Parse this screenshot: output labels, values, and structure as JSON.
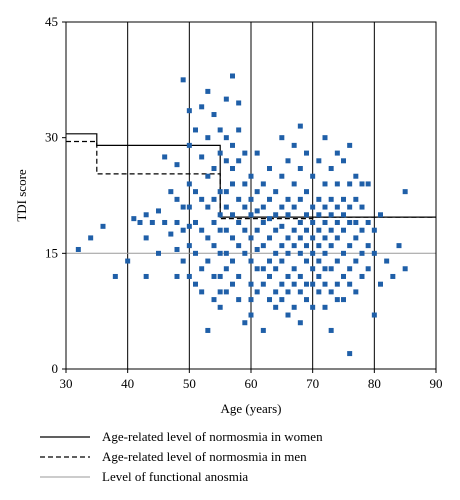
{
  "chart_data": {
    "type": "scatter",
    "title": "",
    "xlabel": "Age (years)",
    "ylabel": "TDI score",
    "xlim": [
      30,
      90
    ],
    "ylim": [
      0,
      45
    ],
    "xticks": [
      "30",
      "40",
      "50",
      "60",
      "70",
      "80",
      "90"
    ],
    "yticks": [
      "0",
      "15",
      "30",
      "45"
    ],
    "xtick_values": [
      30,
      40,
      50,
      60,
      70,
      80,
      90
    ],
    "ytick_values": [
      0,
      15,
      30,
      45
    ],
    "grid": "vertical",
    "marker_color": "#1f5fa8",
    "lines": [
      {
        "name": "Age-related level of normosmia in women",
        "style": "solid",
        "color": "#000000",
        "points": [
          [
            30,
            30.5
          ],
          [
            35,
            30.5
          ],
          [
            35,
            29.0
          ],
          [
            55,
            29.0
          ],
          [
            55,
            19.7
          ],
          [
            90,
            19.7
          ]
        ]
      },
      {
        "name": "Age-related level of normosmia in men",
        "style": "dashed",
        "color": "#000000",
        "points": [
          [
            30,
            29.5
          ],
          [
            35,
            29.5
          ],
          [
            35,
            25.3
          ],
          [
            55,
            25.3
          ],
          [
            55,
            19.5
          ],
          [
            70,
            19.5
          ],
          [
            70,
            19.7
          ],
          [
            90,
            19.7
          ]
        ]
      },
      {
        "name": "Level of functional anosmia",
        "style": "solid",
        "color": "#9a9a9a",
        "points": [
          [
            30,
            15.0
          ],
          [
            90,
            15.0
          ]
        ]
      }
    ],
    "legend_position": "bottom",
    "points": [
      [
        32,
        15.5
      ],
      [
        34,
        17
      ],
      [
        36,
        18.5
      ],
      [
        38,
        12
      ],
      [
        40,
        14
      ],
      [
        41,
        19.5
      ],
      [
        42,
        19
      ],
      [
        43,
        17
      ],
      [
        43,
        20
      ],
      [
        43,
        12
      ],
      [
        44,
        19
      ],
      [
        45,
        20.5
      ],
      [
        45,
        15
      ],
      [
        46,
        27.5
      ],
      [
        46,
        19
      ],
      [
        47,
        23
      ],
      [
        47,
        17.5
      ],
      [
        48,
        26.5
      ],
      [
        48,
        22
      ],
      [
        48,
        19
      ],
      [
        48,
        15.5
      ],
      [
        48,
        12
      ],
      [
        49,
        37.5
      ],
      [
        49,
        21
      ],
      [
        49,
        18
      ],
      [
        49,
        14
      ],
      [
        50,
        33.5
      ],
      [
        50,
        29
      ],
      [
        50,
        24
      ],
      [
        50,
        21
      ],
      [
        50,
        18.5
      ],
      [
        50,
        16
      ],
      [
        50,
        12
      ],
      [
        51,
        31
      ],
      [
        51,
        23
      ],
      [
        51,
        19
      ],
      [
        51,
        15
      ],
      [
        51,
        11
      ],
      [
        52,
        34
      ],
      [
        52,
        27.5
      ],
      [
        52,
        22
      ],
      [
        52,
        18
      ],
      [
        52,
        13
      ],
      [
        52,
        10
      ],
      [
        53,
        36
      ],
      [
        53,
        30
      ],
      [
        53,
        25
      ],
      [
        53,
        21
      ],
      [
        53,
        17
      ],
      [
        53,
        14
      ],
      [
        53,
        5
      ],
      [
        54,
        33
      ],
      [
        54,
        26
      ],
      [
        54,
        22
      ],
      [
        54,
        19
      ],
      [
        54,
        16
      ],
      [
        54,
        12
      ],
      [
        54,
        9
      ],
      [
        55,
        31
      ],
      [
        55,
        28
      ],
      [
        55,
        23
      ],
      [
        55,
        20
      ],
      [
        55,
        18
      ],
      [
        55,
        15
      ],
      [
        55,
        12
      ],
      [
        55,
        10
      ],
      [
        55,
        8
      ],
      [
        56,
        35
      ],
      [
        56,
        30
      ],
      [
        56,
        27
      ],
      [
        56,
        23
      ],
      [
        56,
        21
      ],
      [
        56,
        18
      ],
      [
        56,
        15
      ],
      [
        56,
        13
      ],
      [
        56,
        10
      ],
      [
        57,
        38
      ],
      [
        57,
        29
      ],
      [
        57,
        26
      ],
      [
        57,
        24
      ],
      [
        57,
        20
      ],
      [
        57,
        17
      ],
      [
        57,
        14
      ],
      [
        57,
        11
      ],
      [
        58,
        34.5
      ],
      [
        58,
        31
      ],
      [
        58,
        27
      ],
      [
        58,
        22
      ],
      [
        58,
        19
      ],
      [
        58,
        16
      ],
      [
        58,
        12
      ],
      [
        58,
        9
      ],
      [
        59,
        28
      ],
      [
        59,
        24
      ],
      [
        59,
        21
      ],
      [
        59,
        18
      ],
      [
        59,
        15
      ],
      [
        59,
        6
      ],
      [
        60,
        25
      ],
      [
        60,
        22
      ],
      [
        60,
        20
      ],
      [
        60,
        17
      ],
      [
        60,
        14
      ],
      [
        60,
        11
      ],
      [
        60,
        9
      ],
      [
        60,
        7
      ],
      [
        61,
        28
      ],
      [
        61,
        23
      ],
      [
        61,
        20.5
      ],
      [
        61,
        18
      ],
      [
        61,
        15.5
      ],
      [
        61,
        13
      ],
      [
        61,
        10
      ],
      [
        62,
        24
      ],
      [
        62,
        21
      ],
      [
        62,
        19
      ],
      [
        62,
        16
      ],
      [
        62,
        13
      ],
      [
        62,
        11
      ],
      [
        62,
        5
      ],
      [
        63,
        26
      ],
      [
        63,
        22
      ],
      [
        63,
        19.5
      ],
      [
        63,
        17
      ],
      [
        63,
        14
      ],
      [
        63,
        12
      ],
      [
        63,
        9
      ],
      [
        64,
        23
      ],
      [
        64,
        20
      ],
      [
        64,
        18
      ],
      [
        64,
        15
      ],
      [
        64,
        13
      ],
      [
        64,
        10
      ],
      [
        64,
        8
      ],
      [
        65,
        30
      ],
      [
        65,
        25
      ],
      [
        65,
        21
      ],
      [
        65,
        18.5
      ],
      [
        65,
        16
      ],
      [
        65,
        14
      ],
      [
        65,
        11
      ],
      [
        65,
        9
      ],
      [
        66,
        27
      ],
      [
        66,
        22
      ],
      [
        66,
        20
      ],
      [
        66,
        17
      ],
      [
        66,
        15
      ],
      [
        66,
        12
      ],
      [
        66,
        10
      ],
      [
        66,
        7
      ],
      [
        67,
        29
      ],
      [
        67,
        24
      ],
      [
        67,
        21
      ],
      [
        67,
        18
      ],
      [
        67,
        16
      ],
      [
        67,
        13
      ],
      [
        67,
        11
      ],
      [
        67,
        8
      ],
      [
        68,
        31.5
      ],
      [
        68,
        26
      ],
      [
        68,
        22
      ],
      [
        68,
        19
      ],
      [
        68,
        17
      ],
      [
        68,
        15
      ],
      [
        68,
        12
      ],
      [
        68,
        10
      ],
      [
        68,
        6
      ],
      [
        69,
        28
      ],
      [
        69,
        23
      ],
      [
        69,
        20
      ],
      [
        69,
        18
      ],
      [
        69,
        16
      ],
      [
        69,
        14
      ],
      [
        69,
        11
      ],
      [
        69,
        9
      ],
      [
        70,
        25
      ],
      [
        70,
        21
      ],
      [
        70,
        19
      ],
      [
        70,
        17
      ],
      [
        70,
        15
      ],
      [
        70,
        13
      ],
      [
        70,
        11
      ],
      [
        70,
        8
      ],
      [
        71,
        27
      ],
      [
        71,
        22
      ],
      [
        71,
        20
      ],
      [
        71,
        18
      ],
      [
        71,
        16
      ],
      [
        71,
        14
      ],
      [
        71,
        12
      ],
      [
        71,
        10
      ],
      [
        72,
        30
      ],
      [
        72,
        24
      ],
      [
        72,
        21
      ],
      [
        72,
        19
      ],
      [
        72,
        17
      ],
      [
        72,
        15
      ],
      [
        72,
        13
      ],
      [
        72,
        11
      ],
      [
        72,
        8
      ],
      [
        73,
        26
      ],
      [
        73,
        22
      ],
      [
        73,
        20
      ],
      [
        73,
        18
      ],
      [
        73,
        16
      ],
      [
        73,
        13
      ],
      [
        73,
        10
      ],
      [
        73,
        5
      ],
      [
        74,
        28
      ],
      [
        74,
        24
      ],
      [
        74,
        21
      ],
      [
        74,
        19
      ],
      [
        74,
        17
      ],
      [
        74,
        14
      ],
      [
        74,
        11
      ],
      [
        74,
        9
      ],
      [
        75,
        27
      ],
      [
        75,
        22
      ],
      [
        75,
        20
      ],
      [
        75,
        18
      ],
      [
        75,
        15
      ],
      [
        75,
        12
      ],
      [
        75,
        9
      ],
      [
        76,
        29
      ],
      [
        76,
        24
      ],
      [
        76,
        21
      ],
      [
        76,
        19
      ],
      [
        76,
        16
      ],
      [
        76,
        13
      ],
      [
        76,
        11
      ],
      [
        76,
        2
      ],
      [
        77,
        25
      ],
      [
        77,
        22
      ],
      [
        77,
        19
      ],
      [
        77,
        17
      ],
      [
        77,
        14
      ],
      [
        77,
        10
      ],
      [
        78,
        24
      ],
      [
        78,
        21
      ],
      [
        78,
        18
      ],
      [
        78,
        15
      ],
      [
        78,
        12
      ],
      [
        79,
        24
      ],
      [
        79,
        19
      ],
      [
        79,
        16
      ],
      [
        79,
        13
      ],
      [
        80,
        18
      ],
      [
        80,
        15
      ],
      [
        80,
        7
      ],
      [
        81,
        20
      ],
      [
        81,
        11
      ],
      [
        82,
        14
      ],
      [
        83,
        12
      ],
      [
        84,
        16
      ],
      [
        85,
        23
      ],
      [
        85,
        13
      ]
    ]
  }
}
